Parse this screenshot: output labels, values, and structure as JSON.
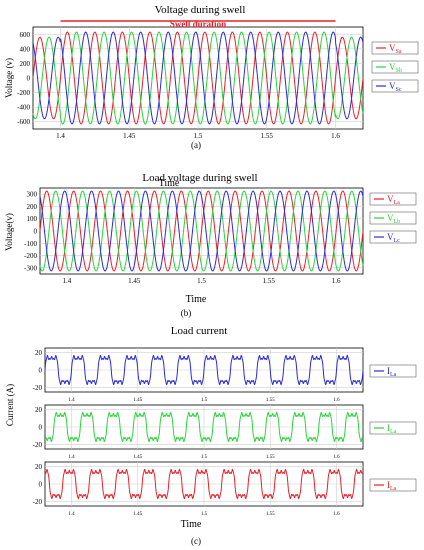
{
  "figure": {
    "caption_a": "(a)",
    "caption_b": "(b)",
    "caption_c": "(c)"
  },
  "colors": {
    "phase_a": "#e8202a",
    "phase_b": "#2ad43a",
    "phase_c": "#2b2bd8",
    "grid": "#cfcfcf",
    "axis_bg": "#ffffff"
  },
  "chart_data": [
    {
      "type": "line",
      "title": "Voltage during swell",
      "xlabel": "Time",
      "ylabel": "Voltage (v)",
      "xlim": [
        1.38,
        1.62
      ],
      "ylim": [
        -700,
        700
      ],
      "xticks": [
        "1.4",
        "1.45",
        "1.5",
        "1.55",
        "1.6"
      ],
      "yticks": [
        "600",
        "400",
        "200",
        "0",
        "-200",
        "-400",
        "-600"
      ],
      "annotation": {
        "text": "Swell duration",
        "x_start": 1.4,
        "x_end": 1.6,
        "color": "#e8202a"
      },
      "frequency_hz": 50,
      "series": [
        {
          "name": "Vsa",
          "amplitude_normal": 560,
          "amplitude_swell": 630,
          "phase_deg": 0,
          "color": "#e8202a"
        },
        {
          "name": "Vsb",
          "amplitude_normal": 560,
          "amplitude_swell": 630,
          "phase_deg": -120,
          "color": "#2ad43a"
        },
        {
          "name": "Vsc",
          "amplitude_normal": 560,
          "amplitude_swell": 630,
          "phase_deg": 120,
          "color": "#2b2bd8"
        }
      ]
    },
    {
      "type": "line",
      "title": "Load voltage during swell",
      "xlabel": "Time",
      "ylabel": "Voltage(v)",
      "xlim": [
        1.38,
        1.62
      ],
      "ylim": [
        -350,
        350
      ],
      "xticks": [
        "1.4",
        "1.45",
        "1.5",
        "1.55",
        "1.6"
      ],
      "yticks": [
        "300",
        "200",
        "100",
        "0",
        "-100",
        "-200",
        "-300"
      ],
      "frequency_hz": 50,
      "series": [
        {
          "name": "VLa",
          "amplitude": 325,
          "phase_deg": 0,
          "color": "#e8202a"
        },
        {
          "name": "VLb",
          "amplitude": 325,
          "phase_deg": -120,
          "color": "#2ad43a"
        },
        {
          "name": "VLc",
          "amplitude": 325,
          "phase_deg": 120,
          "color": "#2b2bd8"
        }
      ]
    },
    {
      "type": "line",
      "title": "Load current",
      "xlabel": "Time",
      "ylabel": "Current (A)",
      "xlim": [
        1.38,
        1.62
      ],
      "ylim": [
        -25,
        25
      ],
      "xticks": [
        "1.4",
        "1.45",
        "1.5",
        "1.55",
        "1.6"
      ],
      "yticks": [
        "20",
        "0",
        "-20"
      ],
      "frequency_hz": 50,
      "series": [
        {
          "name": "ILa",
          "amplitude": 20,
          "phase_deg": 0,
          "color": "#2b2bd8"
        },
        {
          "name": "ILb",
          "amplitude": 20,
          "phase_deg": -120,
          "color": "#2ad43a"
        },
        {
          "name": "ILc",
          "amplitude": 20,
          "phase_deg": 120,
          "color": "#e8202a"
        }
      ]
    }
  ],
  "legends": {
    "a": [
      {
        "main": "V",
        "sub": "Sa"
      },
      {
        "main": "V",
        "sub": "Sb"
      },
      {
        "main": "V",
        "sub": "Sc"
      }
    ],
    "b": [
      {
        "main": "V",
        "sub": "La"
      },
      {
        "main": "V",
        "sub": "Lb"
      },
      {
        "main": "V",
        "sub": "Lc"
      }
    ],
    "c": [
      {
        "main": "I",
        "sub": "La"
      },
      {
        "main": "I",
        "sub": "Lb"
      },
      {
        "main": "I",
        "sub": "Lc"
      }
    ]
  }
}
